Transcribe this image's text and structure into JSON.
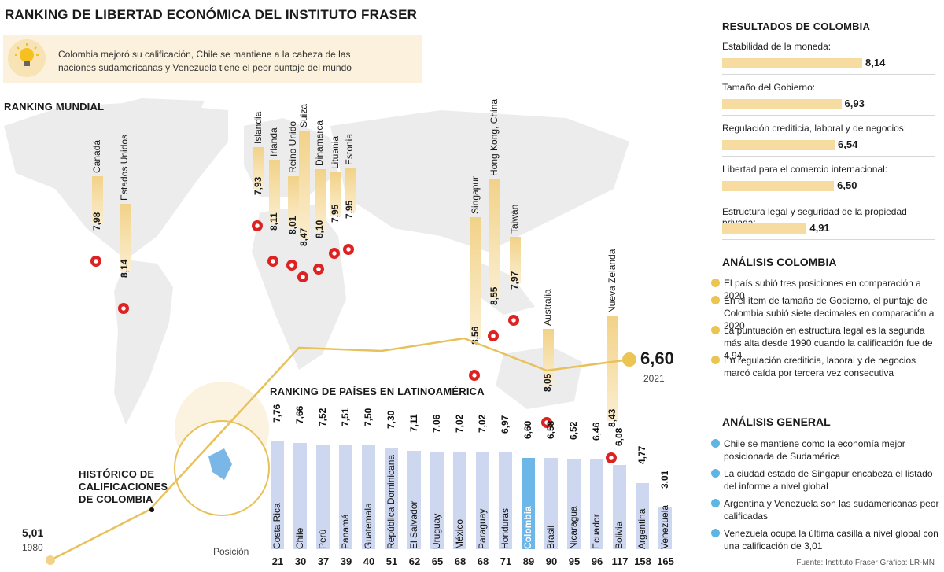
{
  "title": "RANKING DE LIBERTAD ECONÓMICA DEL INSTITUTO FRASER",
  "subtitle": "Colombia mejoró su calificación, Chile se mantiene a la cabeza de las naciones sudamericanas y Venezuela tiene el peor puntaje del mundo",
  "ranking_mundial_label": "RANKING MUNDIAL",
  "latam_label": "RANKING DE PAÍSES EN LATINOAMÉRICA",
  "historico_label": "HISTÓRICO DE CALIFICACIONES DE COLOMBIA",
  "posicion_label": "Posición",
  "source": "Fuente: Instituto Fraser   Gráfico: LR-MN",
  "colors": {
    "gold": "#f2d288",
    "gold_dark": "#e8c15a",
    "latam_bar": "#cdd7ef",
    "colombia_bar": "#6cb6e8",
    "map": "#ececec",
    "dot_yellow": "#ebc452",
    "dot_blue": "#5cb6e4"
  },
  "icons": [
    "lightbulb-icon",
    "flag-icon"
  ],
  "chart_data": [
    {
      "type": "bar",
      "name": "ranking_mundial",
      "categories": [
        "Canadá",
        "Estados Unidos",
        "Islandia",
        "Irlanda",
        "Reino Unido",
        "Suiza",
        "Dinamarca",
        "Lituania",
        "Estonia",
        "Singapur",
        "Hong Kong, China",
        "Taiwán",
        "Australia",
        "Nueva Zelanda"
      ],
      "values": [
        7.98,
        8.14,
        7.93,
        8.11,
        8.01,
        8.47,
        8.1,
        7.95,
        7.95,
        8.56,
        8.55,
        7.97,
        8.05,
        8.43
      ],
      "labels": [
        "7,98",
        "8,14",
        "7,93",
        "8,11",
        "8,01",
        "8,47",
        "8,10",
        "7,95",
        "7,95",
        "8,56",
        "8,55",
        "7,97",
        "8,05",
        "8,43"
      ]
    },
    {
      "type": "bar",
      "name": "latam",
      "title": "RANKING DE PAÍSES EN LATINOAMÉRICA",
      "categories": [
        "Costa Rica",
        "Chile",
        "Perú",
        "Panamá",
        "Guatemala",
        "República Dominicana",
        "El Salvador",
        "Uruguay",
        "México",
        "Paraguay",
        "Honduras",
        "Colombia",
        "Brasil",
        "Nicaragua",
        "Ecuador",
        "Bolivia",
        "Argentina",
        "Venezuela"
      ],
      "values": [
        7.76,
        7.66,
        7.52,
        7.51,
        7.5,
        7.3,
        7.11,
        7.06,
        7.02,
        7.02,
        6.97,
        6.6,
        6.58,
        6.52,
        6.46,
        6.08,
        4.77,
        3.01
      ],
      "labels": [
        "7,76",
        "7,66",
        "7,52",
        "7,51",
        "7,50",
        "7,30",
        "7,11",
        "7,06",
        "7,02",
        "7,02",
        "6,97",
        "6,60",
        "6,58",
        "6,52",
        "6,46",
        "6,08",
        "4,77",
        "3,01"
      ],
      "positions": [
        "21",
        "30",
        "37",
        "39",
        "40",
        "51",
        "62",
        "65",
        "68",
        "68",
        "71",
        "89",
        "90",
        "95",
        "96",
        "117",
        "158",
        "165"
      ],
      "highlight": "Colombia"
    },
    {
      "type": "line",
      "name": "historico_colombia",
      "title": "HISTÓRICO DE CALIFICACIONES DE COLOMBIA",
      "points": [
        {
          "x": "1980",
          "y": 5.01,
          "label": "5,01"
        },
        {
          "x": "2021",
          "y": 6.6,
          "label": "6,60"
        }
      ]
    },
    {
      "type": "bar",
      "name": "resultados_colombia",
      "title": "RESULTADOS DE COLOMBIA",
      "categories": [
        "Estabilidad de la moneda:",
        "Tamaño del Gobierno:",
        "Regulación crediticia, laboral y de negocios:",
        "Libertad para el comercio internacional:",
        "Estructura legal y seguridad de la propiedad privada:"
      ],
      "values": [
        8.14,
        6.93,
        6.54,
        6.5,
        4.91
      ],
      "labels": [
        "8,14",
        "6,93",
        "6,54",
        "6,50",
        "4,91"
      ]
    }
  ],
  "analisis_colombia": {
    "title": "ANÁLISIS COLOMBIA",
    "items": [
      "El país subió tres posiciones en comparación a 2020",
      "En el ítem de tamaño de Gobierno, el puntaje de Colombia subió siete decimales en comparación a 2020",
      "La puntuación en estructura legal es la segunda más alta desde 1990 cuando la calificación fue de 4,94",
      "En regulación crediticia, laboral y de negocios marcó caída por tercera vez consecutiva"
    ]
  },
  "analisis_general": {
    "title": "ANÁLISIS GENERAL",
    "items": [
      "Chile se mantiene como la economía mejor posicionada de Sudamérica",
      "La ciudad estado de Singapur encabeza el listado del informe a nivel global",
      "Argentina y Venezuela son las sudamericanas peor calificadas",
      "Venezuela ocupa la última casilla a nivel global con una calificación de 3,01"
    ]
  }
}
